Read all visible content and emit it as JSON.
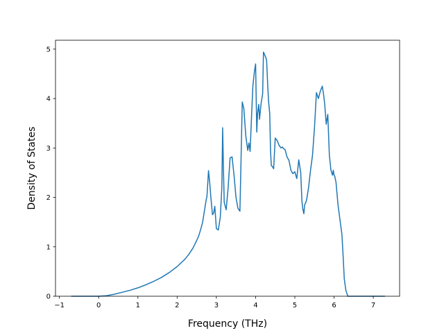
{
  "chart_data": {
    "type": "line",
    "title": "",
    "xlabel": "Frequency (THz)",
    "ylabel": "Density of States",
    "xlim": [
      -1.1,
      7.67
    ],
    "ylim": [
      0,
      5.18
    ],
    "xticks": [
      -1,
      0,
      1,
      2,
      3,
      4,
      5,
      6,
      7
    ],
    "yticks": [
      0,
      1,
      2,
      3,
      4,
      5
    ],
    "grid": false,
    "legend": "none",
    "line_color": "#1f77b4",
    "series": [
      {
        "x": [
          -0.7,
          0.0,
          0.2,
          0.4,
          0.6,
          0.8,
          1.0,
          1.2,
          1.4,
          1.6,
          1.8,
          2.0,
          2.2,
          2.3,
          2.4,
          2.5,
          2.55,
          2.6,
          2.65,
          2.7,
          2.72,
          2.74,
          2.76,
          2.8,
          2.83,
          2.86,
          2.9,
          2.93,
          2.96,
          3.0,
          3.05,
          3.1,
          3.14,
          3.16,
          3.18,
          3.2,
          3.25,
          3.3,
          3.35,
          3.4,
          3.45,
          3.5,
          3.55,
          3.6,
          3.63,
          3.66,
          3.7,
          3.75,
          3.8,
          3.83,
          3.86,
          3.9,
          3.93,
          3.97,
          4.0,
          4.03,
          4.05,
          4.08,
          4.1,
          4.14,
          4.18,
          4.2,
          4.25,
          4.28,
          4.31,
          4.33,
          4.36,
          4.38,
          4.4,
          4.43,
          4.46,
          4.5,
          4.55,
          4.6,
          4.65,
          4.68,
          4.72,
          4.75,
          4.8,
          4.85,
          4.9,
          4.95,
          5.0,
          5.05,
          5.1,
          5.15,
          5.18,
          5.2,
          5.23,
          5.25,
          5.28,
          5.3,
          5.35,
          5.4,
          5.45,
          5.5,
          5.55,
          5.6,
          5.65,
          5.7,
          5.73,
          5.76,
          5.8,
          5.84,
          5.88,
          5.92,
          5.96,
          5.98,
          6.0,
          6.02,
          6.05,
          6.1,
          6.15,
          6.2,
          6.23,
          6.26,
          6.3,
          6.35,
          6.4,
          6.45,
          6.5,
          6.55,
          6.58,
          6.62,
          6.65,
          6.7,
          7.3
        ],
        "y": [
          0.0,
          0.0,
          0.01,
          0.04,
          0.08,
          0.12,
          0.17,
          0.23,
          0.3,
          0.38,
          0.48,
          0.6,
          0.75,
          0.85,
          0.97,
          1.13,
          1.22,
          1.35,
          1.5,
          1.75,
          1.85,
          1.95,
          2.02,
          2.54,
          2.3,
          2.0,
          1.65,
          1.68,
          1.82,
          1.37,
          1.34,
          1.6,
          2.2,
          3.41,
          2.6,
          1.9,
          1.75,
          2.2,
          2.8,
          2.82,
          2.45,
          2.0,
          1.78,
          1.72,
          2.8,
          3.93,
          3.8,
          3.25,
          2.95,
          3.1,
          2.93,
          3.7,
          4.25,
          4.55,
          4.7,
          3.32,
          3.7,
          3.88,
          3.58,
          3.9,
          4.1,
          4.94,
          4.85,
          4.78,
          4.25,
          3.95,
          3.7,
          2.95,
          2.65,
          2.62,
          2.58,
          3.2,
          3.15,
          3.05,
          3.0,
          3.02,
          2.98,
          2.97,
          2.82,
          2.75,
          2.55,
          2.48,
          2.52,
          2.38,
          2.76,
          2.5,
          1.93,
          1.78,
          1.67,
          1.85,
          1.9,
          1.95,
          2.2,
          2.55,
          2.85,
          3.4,
          4.12,
          4.0,
          4.15,
          4.25,
          4.1,
          3.9,
          3.48,
          3.68,
          2.85,
          2.55,
          2.45,
          2.55,
          2.45,
          2.42,
          2.3,
          1.85,
          1.55,
          1.25,
          0.82,
          0.35,
          0.12,
          0.0,
          0.0,
          0.0,
          0.0,
          0.0,
          0.0,
          0.0,
          0.0,
          0.0,
          0.0
        ]
      }
    ]
  }
}
